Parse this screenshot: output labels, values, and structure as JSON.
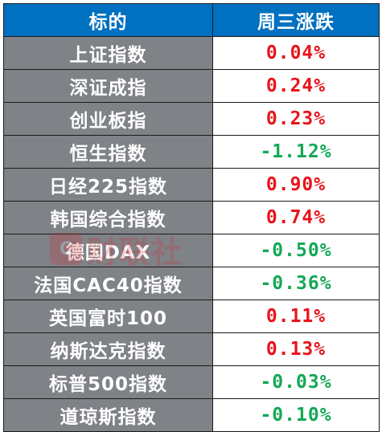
{
  "header": {
    "name_col": "标的",
    "change_col": "周三涨跌"
  },
  "rows": [
    {
      "name": "上证指数",
      "change": "0.04%",
      "dir": "up"
    },
    {
      "name": "深证成指",
      "change": "0.24%",
      "dir": "up"
    },
    {
      "name": "创业板指",
      "change": "0.23%",
      "dir": "up"
    },
    {
      "name": "恒生指数",
      "change": "-1.12%",
      "dir": "down"
    },
    {
      "name": "日经225指数",
      "change": "0.90%",
      "dir": "up"
    },
    {
      "name": "韩国综合指数",
      "change": "0.74%",
      "dir": "up"
    },
    {
      "name": "德国DAX",
      "change": "-0.50%",
      "dir": "down"
    },
    {
      "name": "法国CAC40指数",
      "change": "-0.36%",
      "dir": "down"
    },
    {
      "name": "英国富时100",
      "change": "0.11%",
      "dir": "up"
    },
    {
      "name": "纳斯达克指数",
      "change": "0.13%",
      "dir": "up"
    },
    {
      "name": "标普500指数",
      "change": "-0.03%",
      "dir": "down"
    },
    {
      "name": "道琼斯指数",
      "change": "-0.10%",
      "dir": "down"
    }
  ],
  "colors": {
    "header_bg": "#0070c0",
    "name_bg": "#7f8287",
    "up": "#e8141a",
    "down": "#13a856"
  },
  "watermark": {
    "logo_glyph": "C",
    "text": "财联社"
  }
}
